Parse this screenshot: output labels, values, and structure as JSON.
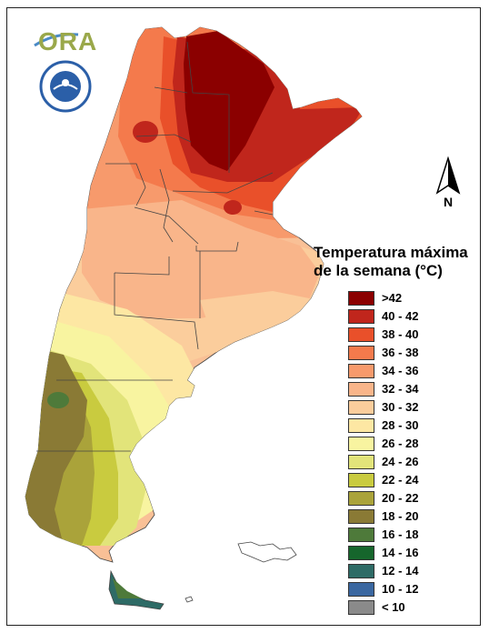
{
  "logo": {
    "wordmark": "ORA",
    "seal": "seal-icon",
    "seal_accent": "#2b5fa8"
  },
  "north_arrow": {
    "label": "N"
  },
  "legend": {
    "title_line1": "Temperatura máxima",
    "title_line2": "de la semana (°C)",
    "items": [
      {
        "label": ">42",
        "color": "#8b0000"
      },
      {
        "label": "40 - 42",
        "color": "#c0261c"
      },
      {
        "label": "38 - 40",
        "color": "#e9502a"
      },
      {
        "label": "36 - 38",
        "color": "#f47a4c"
      },
      {
        "label": "34 - 36",
        "color": "#f79a6c"
      },
      {
        "label": "32 - 34",
        "color": "#f9b58a"
      },
      {
        "label": "30 - 32",
        "color": "#fbcd9c"
      },
      {
        "label": "28 - 30",
        "color": "#fde7a3"
      },
      {
        "label": "26 - 28",
        "color": "#f8f4a0"
      },
      {
        "label": "24 - 26",
        "color": "#e2e47a"
      },
      {
        "label": "22 - 24",
        "color": "#c9cb3f"
      },
      {
        "label": "20 - 22",
        "color": "#aaa33a"
      },
      {
        "label": "18 - 20",
        "color": "#8a7a35"
      },
      {
        "label": "16 - 18",
        "color": "#4e7a3a"
      },
      {
        "label": "14 - 16",
        "color": "#16662c"
      },
      {
        "label": "12 - 14",
        "color": "#2e6b66"
      },
      {
        "label": "10 - 12",
        "color": "#3a67a0"
      },
      {
        "label": "< 10",
        "color": "#8a8a8a"
      }
    ]
  }
}
